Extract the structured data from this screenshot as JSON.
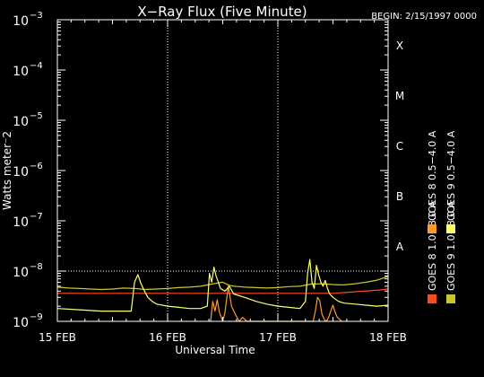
{
  "chart_data": {
    "type": "line",
    "title": "X−Ray Flux (Five Minute)",
    "begin_label": "BEGIN: 2/15/1997 0000",
    "xlabel": "Universal Time",
    "ylabel": "Watts meter⁻2",
    "y_scale": "log",
    "ylim": [
      1e-09,
      0.001
    ],
    "y_ticks": [
      {
        "value": 1e-09,
        "base": "10",
        "exp": "−9"
      },
      {
        "value": 1e-08,
        "base": "10",
        "exp": "−8"
      },
      {
        "value": 1e-07,
        "base": "10",
        "exp": "−7"
      },
      {
        "value": 1e-06,
        "base": "10",
        "exp": "−6"
      },
      {
        "value": 1e-05,
        "base": "10",
        "exp": "−5"
      },
      {
        "value": 0.0001,
        "base": "10",
        "exp": "−4"
      },
      {
        "value": 0.001,
        "base": "10",
        "exp": "−3"
      }
    ],
    "x_unit": "day since 15 FEB 1997 00:00 UT",
    "xlim": [
      0,
      3
    ],
    "x_ticks": [
      {
        "value": 0,
        "label": "15 FEB"
      },
      {
        "value": 1,
        "label": "16 FEB"
      },
      {
        "value": 2,
        "label": "17 FEB"
      },
      {
        "value": 3,
        "label": "18 FEB"
      }
    ],
    "vertical_gridlines": [
      1,
      2
    ],
    "flare_classes": [
      {
        "label": "A",
        "value": 1e-08
      },
      {
        "label": "B",
        "value": 1e-07
      },
      {
        "label": "C",
        "value": 1e-06
      },
      {
        "label": "M",
        "value": 1e-05
      },
      {
        "label": "X",
        "value": 0.0001
      }
    ],
    "legend_placement": "right, vertical",
    "series": [
      {
        "name": "GOES 8 1.0−8.0 A",
        "color": "#ff4a1a",
        "x": [
          0.0,
          0.5,
          1.0,
          1.5,
          2.0,
          2.5,
          2.92,
          3.0
        ],
        "y": [
          3.6e-09,
          3.6e-09,
          3.6e-09,
          3.6e-09,
          3.6e-09,
          3.6e-09,
          4.2e-09,
          4.4e-09
        ]
      },
      {
        "name": "GOES 8 0.5−4.0 A",
        "color": "#ff9a2a",
        "x": [
          1.39,
          1.41,
          1.43,
          1.45,
          1.47,
          1.5,
          1.52,
          1.55,
          1.58,
          1.62,
          1.65,
          1.68,
          1.72,
          2.32,
          2.34,
          2.36,
          2.38,
          2.4,
          2.42,
          2.44,
          2.46,
          2.48,
          2.5,
          2.52,
          2.54,
          2.56,
          2.58
        ],
        "y": [
          1e-09,
          2.5e-09,
          1.6e-09,
          2.7e-09,
          1.5e-09,
          1e-09,
          1.5e-09,
          5e-09,
          2e-09,
          1.3e-09,
          1e-09,
          1.2e-09,
          1e-09,
          1e-09,
          1.6e-09,
          3e-09,
          2.6e-09,
          1.4e-09,
          1.1e-09,
          1e-09,
          1.2e-09,
          1.6e-09,
          2.1e-09,
          1.5e-09,
          1.2e-09,
          1.1e-09,
          1e-09
        ]
      },
      {
        "name": "GOES 9 1.0−8.0 A",
        "color": "#c8c828",
        "x": [
          0.0,
          0.1,
          0.2,
          0.3,
          0.4,
          0.5,
          0.6,
          0.7,
          0.8,
          0.9,
          1.0,
          1.1,
          1.2,
          1.3,
          1.4,
          1.5,
          1.55,
          1.6,
          1.65,
          1.7,
          1.8,
          1.9,
          2.0,
          2.1,
          2.2,
          2.3,
          2.4,
          2.5,
          2.6,
          2.7,
          2.8,
          2.9,
          3.0
        ],
        "y": [
          4.8e-09,
          4.6e-09,
          4.5e-09,
          4.4e-09,
          4.3e-09,
          4.4e-09,
          4.6e-09,
          4.5e-09,
          4.3e-09,
          4.4e-09,
          4.5e-09,
          4.7e-09,
          4.8e-09,
          5e-09,
          5.5e-09,
          6e-09,
          5.3e-09,
          5e-09,
          4.9e-09,
          4.8e-09,
          4.7e-09,
          4.6e-09,
          4.7e-09,
          4.9e-09,
          5e-09,
          5.5e-09,
          5.6e-09,
          5.4e-09,
          5.3e-09,
          5.6e-09,
          6e-09,
          6.6e-09,
          7.8e-09
        ]
      },
      {
        "name": "GOES 9 0.5−4.0 A",
        "color": "#ffff70",
        "x": [
          0.0,
          0.2,
          0.4,
          0.6,
          0.67,
          0.7,
          0.73,
          0.76,
          0.79,
          0.82,
          0.86,
          0.9,
          1.0,
          1.1,
          1.2,
          1.3,
          1.36,
          1.38,
          1.4,
          1.42,
          1.44,
          1.46,
          1.48,
          1.52,
          1.56,
          1.6,
          1.7,
          1.8,
          1.9,
          2.0,
          2.1,
          2.2,
          2.25,
          2.27,
          2.29,
          2.31,
          2.33,
          2.35,
          2.37,
          2.39,
          2.41,
          2.43,
          2.45,
          2.47,
          2.5,
          2.55,
          2.6,
          2.7,
          2.8,
          2.9,
          3.0
        ],
        "y": [
          1.8e-09,
          1.7e-09,
          1.6e-09,
          1.6e-09,
          1.6e-09,
          6e-09,
          8.5e-09,
          5.5e-09,
          4e-09,
          3e-09,
          2.5e-09,
          2.2e-09,
          2e-09,
          1.9e-09,
          1.8e-09,
          1.8e-09,
          2e-09,
          9e-09,
          6e-09,
          1.2e-08,
          8e-09,
          6e-09,
          4.5e-09,
          4e-09,
          5e-09,
          3.5e-09,
          3e-09,
          2.5e-09,
          2.2e-09,
          2e-09,
          1.9e-09,
          1.8e-09,
          2.5e-09,
          9e-09,
          1.7e-08,
          6e-09,
          4.5e-09,
          1.3e-08,
          8.5e-09,
          6e-09,
          5e-09,
          6.5e-09,
          4.5e-09,
          3.5e-09,
          3e-09,
          2.5e-09,
          2.3e-09,
          2.2e-09,
          2.1e-09,
          2e-09,
          2.1e-09
        ]
      }
    ]
  }
}
